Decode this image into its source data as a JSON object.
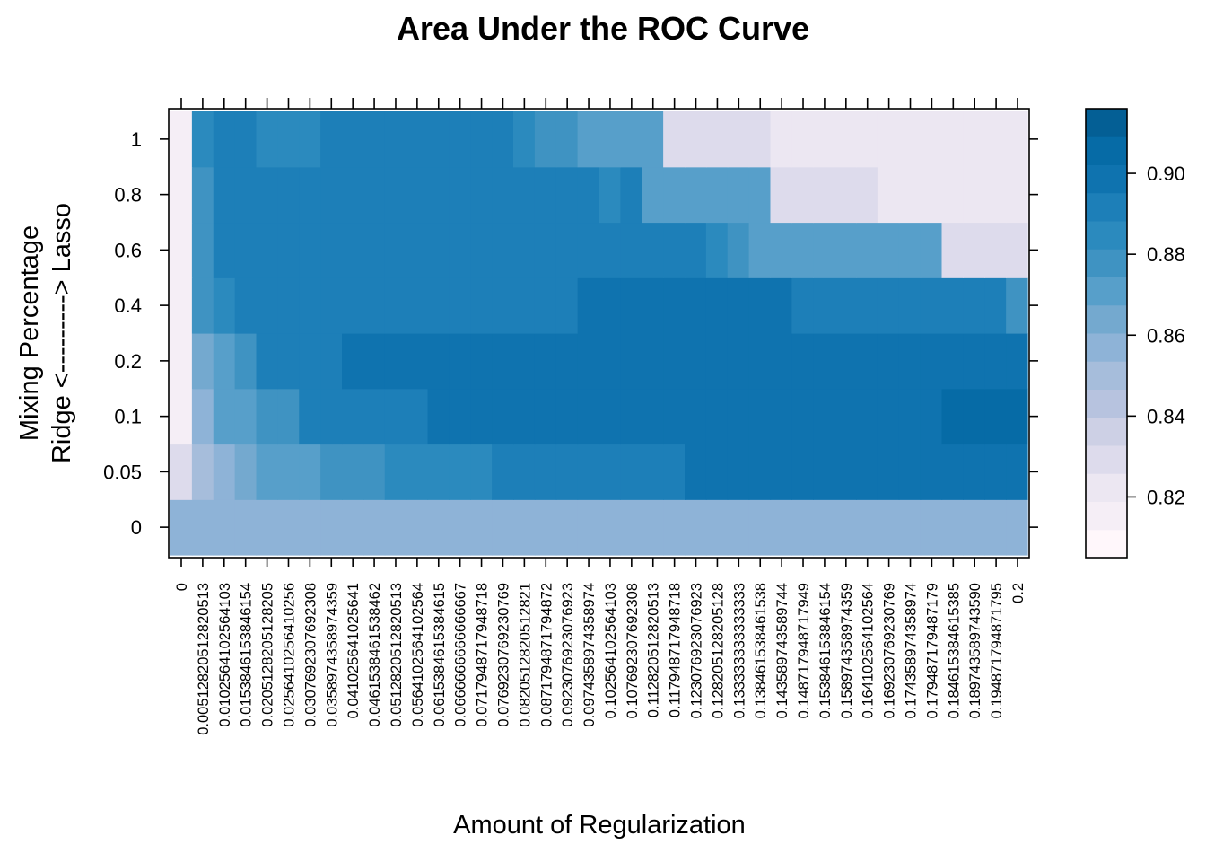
{
  "chart_data": {
    "type": "heatmap",
    "title": "Area Under the ROC Curve",
    "xlabel": "Amount of Regularization",
    "ylabel_lines": [
      "Mixing Percentage",
      "Ridge <---------> Lasso"
    ],
    "x_categories": [
      "0",
      "0.00512820512820513",
      "0.0102564102564103",
      "0.0153846153846154",
      "0.0205128205128205",
      "0.0256410256410256",
      "0.0307692307692308",
      "0.0358974358974359",
      "0.0410256410256410",
      "0.0461538461538462",
      "0.0512820512820513",
      "0.0564102564102564",
      "0.0615384615384615",
      "0.0666666666666667",
      "0.0717948717948718",
      "0.0769230769230769",
      "0.0820512820512821",
      "0.0871794871794872",
      "0.0923076923076923",
      "0.0974358974358974",
      "0.102564102564103",
      "0.107692307692308",
      "0.112820512820513",
      "0.117948717948718",
      "0.123076923076923",
      "0.128205128205128",
      "0.133333333333333",
      "0.138461538461538",
      "0.143589743589744",
      "0.148717948717949",
      "0.153846153846154",
      "0.158974358974359",
      "0.164102564102564",
      "0.169230769230769",
      "0.174358974358974",
      "0.179487179487179",
      "0.184615384615385",
      "0.189743589743590",
      "0.194871794871795",
      "0.2"
    ],
    "x_tick_labels": [
      "0",
      "0.00512820512820513",
      "0.0102564102564103",
      "0.0153846153846154",
      "0.0205128205128205",
      "0.0256410256410256",
      "0.0307692307692308",
      "0.0358974358974359",
      "0.041025641025641",
      "0.0461538461538462",
      "0.0512820512820513",
      "0.0564102564102564",
      "0.0615384615384615",
      "0.0666666666666667",
      "0.0717948717948718",
      "0.0769230769230769",
      "0.0820512820512821",
      "0.0871794871794872",
      "0.0923076923076923",
      "0.0974358974358974",
      "0.102564102564103",
      "0.107692307692308",
      "0.112820512820513",
      "0.117948717948718",
      "0.123076923076923",
      "0.128205128205128",
      "0.133333333333333",
      "0.138461538461538",
      "0.143589743589744",
      "0.148717948717949",
      "0.153846153846154",
      "0.158974358974359",
      "0.164102564102564",
      "0.169230769230769",
      "0.174358974358974",
      "0.179487179487179",
      "0.184615384615385",
      "0.189743589743590",
      "0.194871794871795",
      "0.2"
    ],
    "y_categories": [
      "0",
      "0.05",
      "0.1",
      "0.2",
      "0.4",
      "0.6",
      "0.8",
      "1"
    ],
    "values": [
      [
        0.856,
        0.856,
        0.856,
        0.856,
        0.856,
        0.856,
        0.86,
        0.86,
        0.86,
        0.86,
        0.86,
        0.86,
        0.86,
        0.86,
        0.86,
        0.86,
        0.86,
        0.86,
        0.86,
        0.86,
        0.86,
        0.86,
        0.86,
        0.86,
        0.86,
        0.86,
        0.86,
        0.86,
        0.86,
        0.86,
        0.86,
        0.86,
        0.86,
        0.86,
        0.86,
        0.86,
        0.86,
        0.86,
        0.86,
        0.86
      ],
      [
        0.826,
        0.85,
        0.854,
        0.864,
        0.868,
        0.874,
        0.874,
        0.88,
        0.88,
        0.88,
        0.884,
        0.884,
        0.884,
        0.884,
        0.884,
        0.889,
        0.889,
        0.889,
        0.889,
        0.889,
        0.889,
        0.889,
        0.889,
        0.889,
        0.902,
        0.902,
        0.902,
        0.902,
        0.902,
        0.902,
        0.902,
        0.902,
        0.902,
        0.902,
        0.902,
        0.902,
        0.902,
        0.902,
        0.902,
        0.902
      ],
      [
        0.818,
        0.854,
        0.868,
        0.874,
        0.88,
        0.88,
        0.889,
        0.889,
        0.894,
        0.894,
        0.894,
        0.894,
        0.902,
        0.902,
        0.902,
        0.902,
        0.902,
        0.902,
        0.902,
        0.902,
        0.902,
        0.902,
        0.902,
        0.902,
        0.902,
        0.902,
        0.902,
        0.902,
        0.902,
        0.902,
        0.902,
        0.902,
        0.902,
        0.902,
        0.902,
        0.902,
        0.908,
        0.908,
        0.908,
        0.908
      ],
      [
        0.818,
        0.864,
        0.874,
        0.88,
        0.889,
        0.894,
        0.894,
        0.894,
        0.902,
        0.902,
        0.902,
        0.902,
        0.902,
        0.902,
        0.902,
        0.902,
        0.902,
        0.902,
        0.902,
        0.902,
        0.902,
        0.902,
        0.902,
        0.902,
        0.902,
        0.902,
        0.902,
        0.902,
        0.902,
        0.902,
        0.902,
        0.902,
        0.902,
        0.902,
        0.902,
        0.902,
        0.902,
        0.902,
        0.902,
        0.902
      ],
      [
        0.818,
        0.88,
        0.884,
        0.889,
        0.894,
        0.894,
        0.894,
        0.894,
        0.894,
        0.894,
        0.894,
        0.894,
        0.894,
        0.894,
        0.894,
        0.894,
        0.894,
        0.894,
        0.894,
        0.902,
        0.902,
        0.902,
        0.902,
        0.902,
        0.902,
        0.902,
        0.902,
        0.902,
        0.902,
        0.894,
        0.894,
        0.894,
        0.894,
        0.894,
        0.894,
        0.889,
        0.889,
        0.889,
        0.894,
        0.88
      ],
      [
        0.818,
        0.88,
        0.889,
        0.889,
        0.889,
        0.889,
        0.889,
        0.889,
        0.889,
        0.889,
        0.894,
        0.894,
        0.894,
        0.894,
        0.894,
        0.894,
        0.894,
        0.894,
        0.894,
        0.894,
        0.894,
        0.894,
        0.894,
        0.889,
        0.889,
        0.884,
        0.88,
        0.87,
        0.87,
        0.87,
        0.87,
        0.87,
        0.87,
        0.87,
        0.87,
        0.87,
        0.83,
        0.83,
        0.83,
        0.83
      ],
      [
        0.814,
        0.88,
        0.889,
        0.889,
        0.889,
        0.889,
        0.889,
        0.889,
        0.889,
        0.894,
        0.894,
        0.894,
        0.894,
        0.894,
        0.894,
        0.894,
        0.894,
        0.894,
        0.894,
        0.889,
        0.884,
        0.889,
        0.87,
        0.87,
        0.87,
        0.87,
        0.87,
        0.87,
        0.83,
        0.83,
        0.83,
        0.83,
        0.83,
        0.822,
        0.822,
        0.822,
        0.822,
        0.822,
        0.822,
        0.822
      ],
      [
        0.814,
        0.884,
        0.889,
        0.889,
        0.884,
        0.884,
        0.884,
        0.889,
        0.889,
        0.894,
        0.894,
        0.894,
        0.894,
        0.894,
        0.894,
        0.889,
        0.884,
        0.876,
        0.876,
        0.87,
        0.87,
        0.87,
        0.87,
        0.83,
        0.83,
        0.83,
        0.83,
        0.83,
        0.822,
        0.822,
        0.822,
        0.822,
        0.822,
        0.822,
        0.822,
        0.822,
        0.822,
        0.822,
        0.822,
        0.822
      ]
    ],
    "colorbar": {
      "range": [
        0.805,
        0.916
      ],
      "ticks": [
        0.82,
        0.84,
        0.86,
        0.88,
        0.9
      ],
      "tick_labels": [
        "0.82",
        "0.84",
        "0.86",
        "0.88",
        "0.90"
      ],
      "colors": [
        "#FFF7FB",
        "#F5EEF6",
        "#ECE7F2",
        "#DDDBEC",
        "#CDD0E5",
        "#B7C3DF",
        "#A6BDDB",
        "#8EB3D7",
        "#74A9CF",
        "#579FCA",
        "#3F93C2",
        "#2B8ABE",
        "#1D7FB8",
        "#0F73AF",
        "#066BA6",
        "#045F95"
      ]
    },
    "grid": false,
    "legend": "right"
  }
}
